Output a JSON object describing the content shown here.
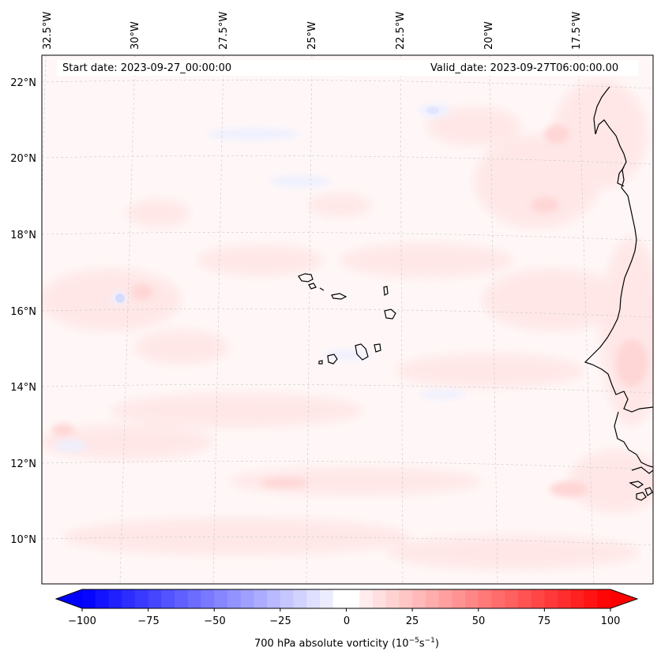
{
  "header": {
    "start_date": "Start date: 2023-09-27_00:00:00",
    "valid_date": "Valid_date: 2023-09-27T06:00:00.00"
  },
  "map": {
    "longitude_labels": [
      "32.5°W",
      "30°W",
      "27.5°W",
      "25°W",
      "22.5°W",
      "20°W",
      "17.5°W"
    ],
    "latitude_labels": [
      "22°N",
      "20°N",
      "18°N",
      "16°N",
      "14°N",
      "12°N",
      "10°N"
    ],
    "features": [
      "Cape Verde islands",
      "West African coastline"
    ]
  },
  "colorbar": {
    "label": "700 hPa absolute vorticity (10",
    "label_exp1": "−5",
    "label_mid": "s",
    "label_exp2": "−1",
    "label_end": ")",
    "ticks": [
      "−100",
      "−75",
      "−50",
      "−25",
      "0",
      "25",
      "50",
      "75",
      "100"
    ],
    "range": [
      -100,
      100
    ],
    "negative_color": "#0000ff",
    "positive_color": "#ff0000",
    "extend": "both"
  }
}
